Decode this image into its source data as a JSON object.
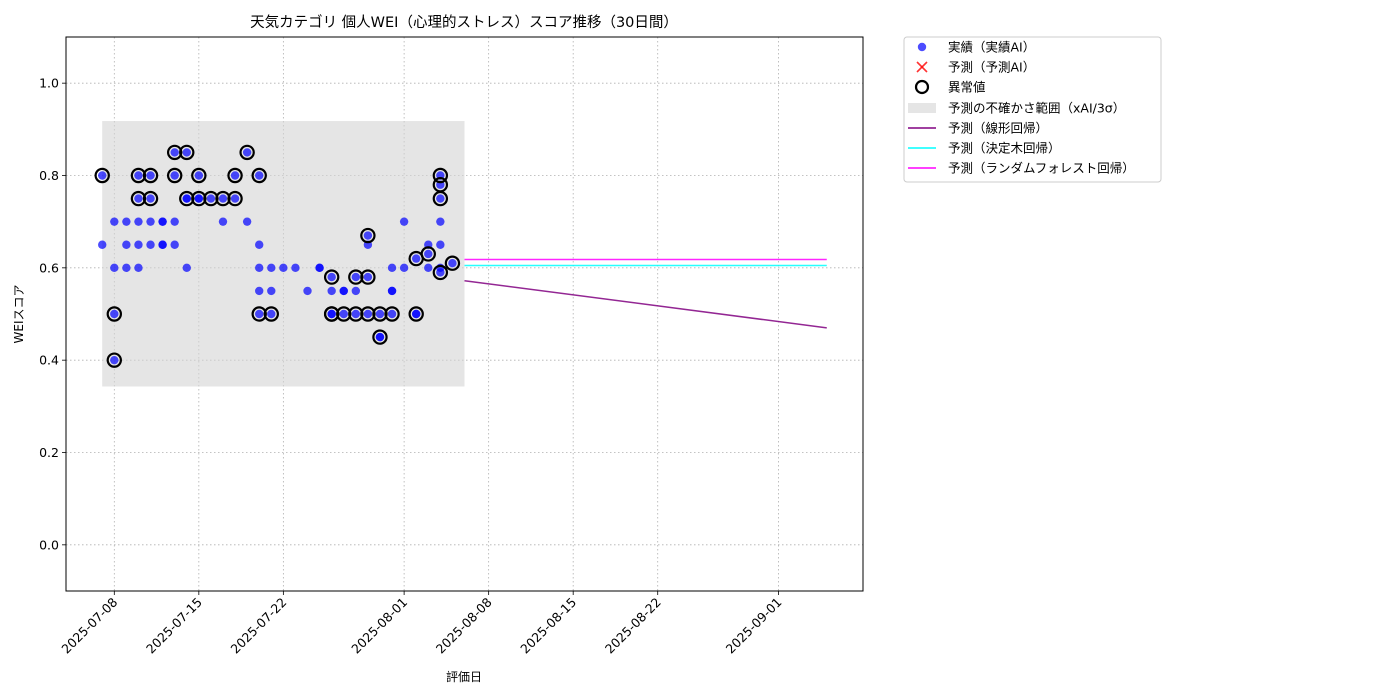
{
  "chart_data": {
    "type": "scatter",
    "title": "天気カテゴリ 個人WEI（心理的ストレス）スコア推移（30日間）",
    "xlabel": "評価日",
    "ylabel": "WEIスコア",
    "xlim": [
      "2025-07-04",
      "2025-09-08"
    ],
    "ylim": [
      -0.1,
      1.1
    ],
    "x_ticks": [
      "2025-07-08",
      "2025-07-15",
      "2025-07-22",
      "2025-08-01",
      "2025-08-08",
      "2025-08-15",
      "2025-08-22",
      "2025-09-01"
    ],
    "y_ticks": [
      "0.0",
      "0.2",
      "0.4",
      "0.6",
      "0.8",
      "1.0"
    ],
    "grid": true,
    "legend_position": "outside-right-top",
    "legend": [
      "実績（実績AI）",
      "予測（予測AI）",
      "異常値",
      "予測の不確かさ範囲（xAI/3σ）",
      "予測（線形回帰）",
      "予測（決定木回帰）",
      "予測（ランダムフォレスト回帰）"
    ],
    "colors": {
      "actual": "#0000ff",
      "predicted": "#ff0000",
      "anomaly": "#000000",
      "band": "#d3d3d3",
      "linear": "#800080",
      "tree": "#00ffff",
      "forest": "#ff00ff"
    },
    "uncertainty_band": {
      "x": [
        "2025-07-07",
        "2025-08-06"
      ],
      "y": [
        0.343,
        0.918
      ]
    },
    "series": [
      {
        "name": "実績（実績AI）",
        "kind": "scatter",
        "points": [
          [
            "2025-07-07",
            0.65
          ],
          [
            "2025-07-07",
            0.8
          ],
          [
            "2025-07-08",
            0.7
          ],
          [
            "2025-07-08",
            0.6
          ],
          [
            "2025-07-08",
            0.5
          ],
          [
            "2025-07-08",
            0.4
          ],
          [
            "2025-07-09",
            0.6
          ],
          [
            "2025-07-09",
            0.65
          ],
          [
            "2025-07-09",
            0.7
          ],
          [
            "2025-07-10",
            0.6
          ],
          [
            "2025-07-10",
            0.65
          ],
          [
            "2025-07-10",
            0.75
          ],
          [
            "2025-07-10",
            0.7
          ],
          [
            "2025-07-10",
            0.8
          ],
          [
            "2025-07-11",
            0.65
          ],
          [
            "2025-07-11",
            0.75
          ],
          [
            "2025-07-11",
            0.8
          ],
          [
            "2025-07-11",
            0.7
          ],
          [
            "2025-07-12",
            0.65
          ],
          [
            "2025-07-12",
            0.7
          ],
          [
            "2025-07-12",
            0.65
          ],
          [
            "2025-07-12",
            0.7
          ],
          [
            "2025-07-13",
            0.85
          ],
          [
            "2025-07-13",
            0.8
          ],
          [
            "2025-07-13",
            0.65
          ],
          [
            "2025-07-13",
            0.7
          ],
          [
            "2025-07-14",
            0.75
          ],
          [
            "2025-07-14",
            0.6
          ],
          [
            "2025-07-14",
            0.75
          ],
          [
            "2025-07-14",
            0.85
          ],
          [
            "2025-07-15",
            0.75
          ],
          [
            "2025-07-15",
            0.8
          ],
          [
            "2025-07-15",
            0.75
          ],
          [
            "2025-07-16",
            0.75
          ],
          [
            "2025-07-17",
            0.75
          ],
          [
            "2025-07-17",
            0.7
          ],
          [
            "2025-07-18",
            0.8
          ],
          [
            "2025-07-18",
            0.75
          ],
          [
            "2025-07-19",
            0.85
          ],
          [
            "2025-07-19",
            0.7
          ],
          [
            "2025-07-20",
            0.8
          ],
          [
            "2025-07-20",
            0.65
          ],
          [
            "2025-07-20",
            0.6
          ],
          [
            "2025-07-20",
            0.55
          ],
          [
            "2025-07-20",
            0.5
          ],
          [
            "2025-07-21",
            0.55
          ],
          [
            "2025-07-21",
            0.5
          ],
          [
            "2025-07-21",
            0.6
          ],
          [
            "2025-07-22",
            0.6
          ],
          [
            "2025-07-23",
            0.6
          ],
          [
            "2025-07-24",
            0.55
          ],
          [
            "2025-07-25",
            0.6
          ],
          [
            "2025-07-25",
            0.6
          ],
          [
            "2025-07-26",
            0.5
          ],
          [
            "2025-07-26",
            0.55
          ],
          [
            "2025-07-26",
            0.58
          ],
          [
            "2025-07-26",
            0.5
          ],
          [
            "2025-07-27",
            0.55
          ],
          [
            "2025-07-27",
            0.5
          ],
          [
            "2025-07-27",
            0.55
          ],
          [
            "2025-07-28",
            0.5
          ],
          [
            "2025-07-28",
            0.58
          ],
          [
            "2025-07-28",
            0.55
          ],
          [
            "2025-07-29",
            0.67
          ],
          [
            "2025-07-29",
            0.58
          ],
          [
            "2025-07-29",
            0.65
          ],
          [
            "2025-07-29",
            0.5
          ],
          [
            "2025-07-30",
            0.5
          ],
          [
            "2025-07-30",
            0.45
          ],
          [
            "2025-07-30",
            0.45
          ],
          [
            "2025-07-31",
            0.55
          ],
          [
            "2025-07-31",
            0.6
          ],
          [
            "2025-07-31",
            0.5
          ],
          [
            "2025-07-31",
            0.55
          ],
          [
            "2025-08-01",
            0.6
          ],
          [
            "2025-08-01",
            0.7
          ],
          [
            "2025-08-02",
            0.5
          ],
          [
            "2025-08-02",
            0.62
          ],
          [
            "2025-08-02",
            0.5
          ],
          [
            "2025-08-03",
            0.6
          ],
          [
            "2025-08-03",
            0.63
          ],
          [
            "2025-08-03",
            0.65
          ],
          [
            "2025-08-04",
            0.8
          ],
          [
            "2025-08-04",
            0.75
          ],
          [
            "2025-08-04",
            0.7
          ],
          [
            "2025-08-04",
            0.65
          ],
          [
            "2025-08-04",
            0.6
          ],
          [
            "2025-08-04",
            0.59
          ],
          [
            "2025-08-04",
            0.78
          ],
          [
            "2025-08-05",
            0.61
          ]
        ]
      },
      {
        "name": "異常値",
        "kind": "anomaly",
        "points": [
          [
            "2025-07-07",
            0.8
          ],
          [
            "2025-07-08",
            0.5
          ],
          [
            "2025-07-08",
            0.4
          ],
          [
            "2025-07-10",
            0.75
          ],
          [
            "2025-07-10",
            0.8
          ],
          [
            "2025-07-11",
            0.8
          ],
          [
            "2025-07-11",
            0.75
          ],
          [
            "2025-07-13",
            0.85
          ],
          [
            "2025-07-13",
            0.8
          ],
          [
            "2025-07-14",
            0.75
          ],
          [
            "2025-07-14",
            0.85
          ],
          [
            "2025-07-15",
            0.75
          ],
          [
            "2025-07-15",
            0.8
          ],
          [
            "2025-07-16",
            0.75
          ],
          [
            "2025-07-17",
            0.75
          ],
          [
            "2025-07-18",
            0.8
          ],
          [
            "2025-07-18",
            0.75
          ],
          [
            "2025-07-19",
            0.85
          ],
          [
            "2025-07-20",
            0.8
          ],
          [
            "2025-07-20",
            0.5
          ],
          [
            "2025-07-21",
            0.5
          ],
          [
            "2025-07-26",
            0.5
          ],
          [
            "2025-07-26",
            0.58
          ],
          [
            "2025-07-26",
            0.5
          ],
          [
            "2025-07-27",
            0.5
          ],
          [
            "2025-07-28",
            0.5
          ],
          [
            "2025-07-28",
            0.58
          ],
          [
            "2025-07-29",
            0.67
          ],
          [
            "2025-07-29",
            0.58
          ],
          [
            "2025-07-29",
            0.5
          ],
          [
            "2025-07-30",
            0.5
          ],
          [
            "2025-07-30",
            0.45
          ],
          [
            "2025-07-31",
            0.5
          ],
          [
            "2025-08-02",
            0.5
          ],
          [
            "2025-08-02",
            0.62
          ],
          [
            "2025-08-03",
            0.63
          ],
          [
            "2025-08-04",
            0.8
          ],
          [
            "2025-08-04",
            0.75
          ],
          [
            "2025-08-04",
            0.59
          ],
          [
            "2025-08-04",
            0.78
          ],
          [
            "2025-08-05",
            0.61
          ]
        ]
      },
      {
        "name": "予測（線形回帰）",
        "kind": "line",
        "points": [
          [
            "2025-08-06",
            0.572
          ],
          [
            "2025-09-05",
            0.47
          ]
        ]
      },
      {
        "name": "予測（決定木回帰）",
        "kind": "line",
        "points": [
          [
            "2025-08-06",
            0.605
          ],
          [
            "2025-09-05",
            0.605
          ]
        ]
      },
      {
        "name": "予測（ランダムフォレスト回帰）",
        "kind": "line",
        "points": [
          [
            "2025-08-06",
            0.618
          ],
          [
            "2025-09-05",
            0.618
          ]
        ]
      }
    ]
  }
}
